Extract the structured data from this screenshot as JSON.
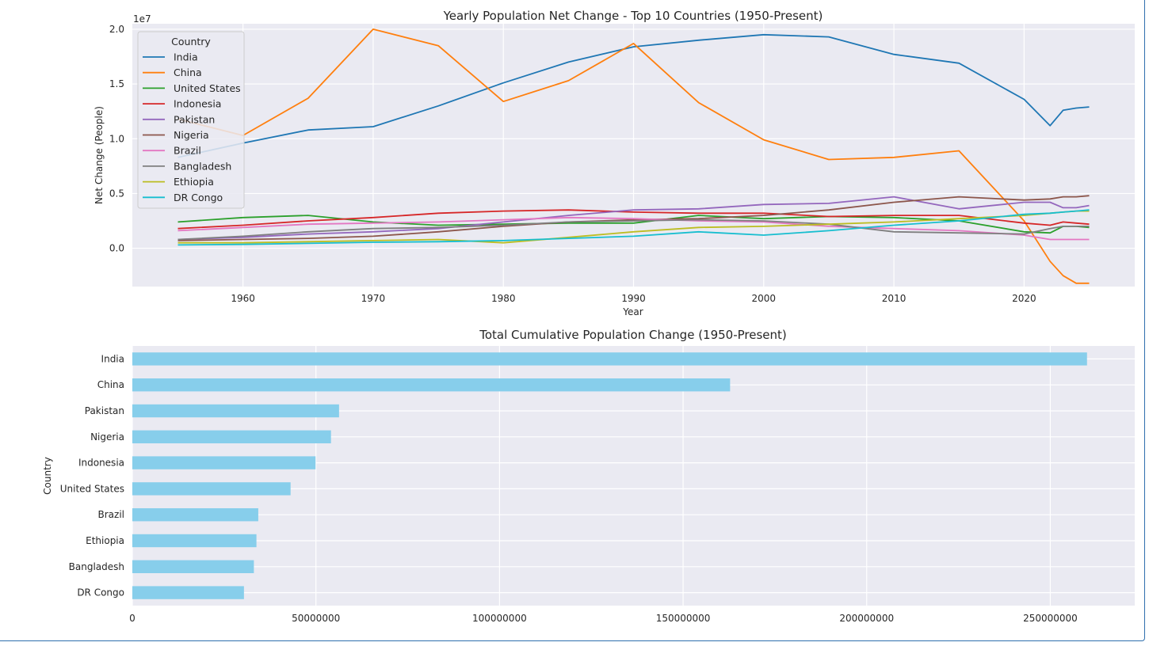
{
  "chart_data": [
    {
      "type": "line",
      "title": "Yearly Population Net Change - Top 10 Countries (1950-Present)",
      "xlabel": "Year",
      "ylabel": "Net Change (People)",
      "y_offset_label": "1e7",
      "xlim": [
        1951.5,
        2028.5
      ],
      "ylim": [
        -3.5,
        20.5
      ],
      "y_unit_multiplier": 10000000,
      "x_ticks": [
        1960,
        1970,
        1980,
        1990,
        2000,
        2010,
        2020
      ],
      "y_ticks": [
        0.0,
        0.5,
        1.0,
        1.5,
        2.0
      ],
      "y_tick_labels": [
        "0.0",
        "0.5",
        "1.0",
        "1.5",
        "2.0"
      ],
      "grid": true,
      "legend_title": "Country",
      "legend_position": "upper-left",
      "x": [
        1955,
        1960,
        1965,
        1970,
        1975,
        1980,
        1985,
        1990,
        1995,
        2000,
        2005,
        2010,
        2015,
        2020,
        2022,
        2023,
        2024,
        2025
      ],
      "series": [
        {
          "name": "India",
          "color": "#1f77b4",
          "values": [
            8.3,
            9.6,
            10.8,
            11.1,
            13.0,
            15.1,
            17.0,
            18.4,
            19.0,
            19.5,
            19.3,
            17.7,
            16.9,
            13.6,
            11.2,
            12.6,
            12.8,
            12.9
          ]
        },
        {
          "name": "China",
          "color": "#ff7f0e",
          "values": [
            11.8,
            10.3,
            13.7,
            20.0,
            18.5,
            13.4,
            15.3,
            18.7,
            13.3,
            9.9,
            8.1,
            8.3,
            8.9,
            2.5,
            -1.2,
            -2.5,
            -3.2,
            -3.2
          ]
        },
        {
          "name": "United States",
          "color": "#2ca02c",
          "values": [
            2.4,
            2.8,
            3.0,
            2.4,
            2.1,
            2.2,
            2.3,
            2.3,
            3.0,
            2.7,
            2.9,
            2.8,
            2.5,
            1.5,
            1.4,
            2.0,
            2.0,
            1.9
          ]
        },
        {
          "name": "Indonesia",
          "color": "#d62728",
          "values": [
            1.8,
            2.1,
            2.5,
            2.8,
            3.2,
            3.4,
            3.5,
            3.3,
            3.2,
            3.2,
            2.9,
            3.0,
            3.0,
            2.3,
            2.1,
            2.4,
            2.3,
            2.2
          ]
        },
        {
          "name": "Pakistan",
          "color": "#9467bd",
          "values": [
            0.8,
            1.0,
            1.3,
            1.5,
            1.8,
            2.4,
            3.0,
            3.5,
            3.6,
            4.0,
            4.1,
            4.7,
            3.6,
            4.2,
            4.2,
            3.7,
            3.7,
            3.9
          ]
        },
        {
          "name": "Nigeria",
          "color": "#8c564b",
          "values": [
            0.7,
            0.8,
            0.9,
            1.1,
            1.5,
            2.0,
            2.4,
            2.6,
            2.7,
            3.0,
            3.5,
            4.2,
            4.7,
            4.4,
            4.5,
            4.7,
            4.7,
            4.8
          ]
        },
        {
          "name": "Brazil",
          "color": "#e377c2",
          "values": [
            1.6,
            1.9,
            2.2,
            2.3,
            2.4,
            2.6,
            2.8,
            2.7,
            2.5,
            2.4,
            2.0,
            1.8,
            1.6,
            1.2,
            0.8,
            0.8,
            0.8,
            0.8
          ]
        },
        {
          "name": "Bangladesh",
          "color": "#7f7f7f",
          "values": [
            0.8,
            1.1,
            1.5,
            1.8,
            1.9,
            2.1,
            2.4,
            2.5,
            2.6,
            2.5,
            2.2,
            1.5,
            1.4,
            1.3,
            1.8,
            2.0,
            2.0,
            2.0
          ]
        },
        {
          "name": "Ethiopia",
          "color": "#bcbd22",
          "values": [
            0.5,
            0.5,
            0.6,
            0.7,
            0.8,
            0.5,
            1.0,
            1.5,
            1.9,
            2.0,
            2.2,
            2.4,
            2.7,
            3.0,
            3.2,
            3.3,
            3.4,
            3.4
          ]
        },
        {
          "name": "DR Congo",
          "color": "#17becf",
          "values": [
            0.3,
            0.35,
            0.45,
            0.55,
            0.6,
            0.7,
            0.9,
            1.1,
            1.5,
            1.2,
            1.6,
            2.1,
            2.5,
            3.1,
            3.2,
            3.3,
            3.4,
            3.5
          ]
        }
      ]
    },
    {
      "type": "bar",
      "orientation": "horizontal",
      "title": "Total Cumulative Population Change (1950-Present)",
      "xlabel": "",
      "ylabel": "Country",
      "categories": [
        "India",
        "China",
        "Pakistan",
        "Nigeria",
        "Indonesia",
        "United States",
        "Brazil",
        "Ethiopia",
        "Bangladesh",
        "DR Congo"
      ],
      "values": [
        260000000,
        162800000,
        56300000,
        54100000,
        49900000,
        43100000,
        34300000,
        33800000,
        33100000,
        30400000
      ],
      "xlim": [
        0,
        273000000
      ],
      "x_ticks": [
        0,
        50000000,
        100000000,
        150000000,
        200000000,
        250000000
      ],
      "x_tick_labels": [
        "0",
        "50000000",
        "100000000",
        "150000000",
        "200000000",
        "250000000"
      ],
      "bar_color": "#87ceeb",
      "grid": true
    }
  ]
}
